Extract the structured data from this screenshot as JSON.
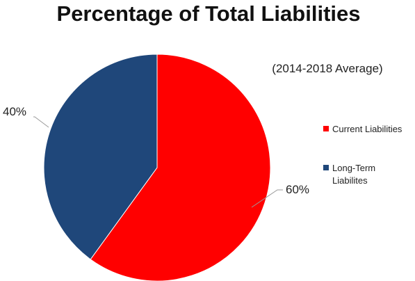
{
  "chart_data": {
    "type": "pie",
    "title": "Percentage of Total Liabilities",
    "subtitle": "(2014-2018 Average)",
    "legend_position": "right",
    "slices": [
      {
        "label_lines": [
          "Current Liabilities"
        ],
        "value": 60,
        "data_label": "60%",
        "color": "#ff0000"
      },
      {
        "label_lines": [
          "Long-Term",
          "Liabilites"
        ],
        "value": 40,
        "data_label": "40%",
        "color": "#1f477a"
      }
    ]
  }
}
